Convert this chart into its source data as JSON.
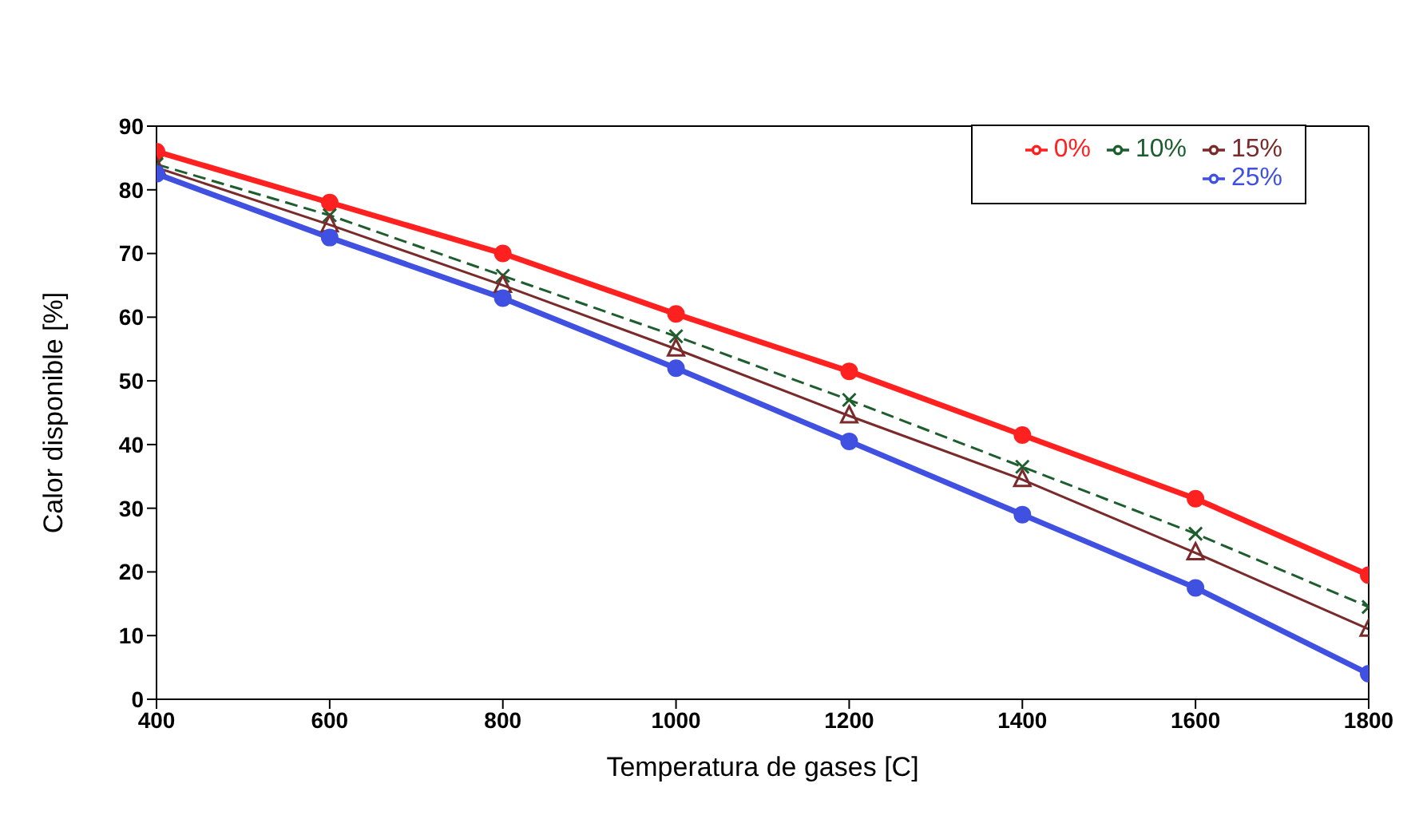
{
  "chart_data": {
    "type": "line",
    "xlabel": "Temperatura de gases [C]",
    "ylabel": "Calor disponible [%]",
    "x": [
      400,
      600,
      800,
      1000,
      1200,
      1400,
      1600,
      1800
    ],
    "series": [
      {
        "name": "0%",
        "color": "#ff2020",
        "marker": "circle",
        "line_style": "solid",
        "values": [
          86,
          78,
          70,
          60.5,
          51.5,
          41.5,
          31.5,
          19.5
        ]
      },
      {
        "name": "10%",
        "color": "#1e5e2e",
        "marker": "cross",
        "line_style": "dashed",
        "values": [
          84,
          76,
          66.5,
          57,
          47,
          36.5,
          26,
          14.5
        ]
      },
      {
        "name": "15%",
        "color": "#7a2a2a",
        "marker": "triangle",
        "line_style": "solid",
        "values": [
          83.5,
          74.5,
          65,
          55,
          44.5,
          34.5,
          23,
          11
        ]
      },
      {
        "name": "25%",
        "color": "#4050e0",
        "marker": "circle",
        "line_style": "solid",
        "values": [
          82.5,
          72.5,
          63,
          52,
          40.5,
          29,
          17.5,
          4
        ]
      }
    ],
    "xlim": [
      400,
      1800
    ],
    "xticks": [
      400,
      600,
      800,
      1000,
      1200,
      1400,
      1600,
      1800
    ],
    "ylim": [
      0,
      90
    ],
    "yticks": [
      0,
      10,
      20,
      30,
      40,
      50,
      60,
      70,
      80,
      90
    ],
    "grid": false,
    "legend": "top right"
  }
}
